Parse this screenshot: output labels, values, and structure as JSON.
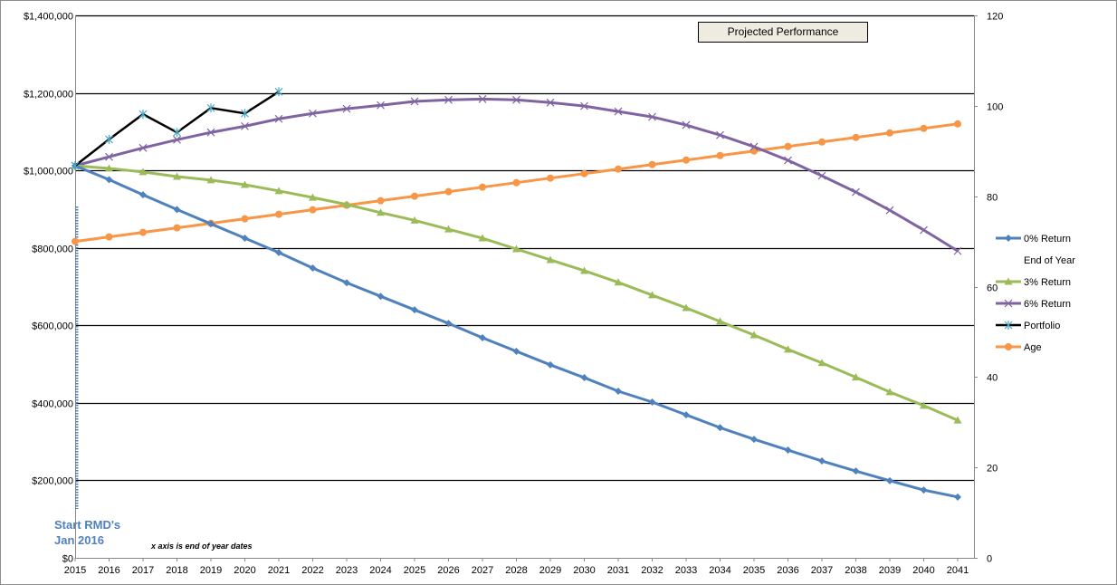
{
  "chart_data": {
    "type": "line",
    "title": "Projected Performance",
    "xlabel": "",
    "ylabel": "",
    "x_note": "x axis is end of year dates",
    "annotation": "Start RMD's\nJan 2016",
    "categories": [
      "2015",
      "2016",
      "2017",
      "2018",
      "2019",
      "2020",
      "2021",
      "2022",
      "2023",
      "2024",
      "2025",
      "2026",
      "2027",
      "2028",
      "2029",
      "2030",
      "2031",
      "2032",
      "2033",
      "2034",
      "2035",
      "2036",
      "2037",
      "2038",
      "2039",
      "2040",
      "2041"
    ],
    "left_axis": {
      "min": 0,
      "max": 1400000,
      "step": 200000,
      "ticks": [
        "$0",
        "$200,000",
        "$400,000",
        "$600,000",
        "$800,000",
        "$1,000,000",
        "$1,200,000",
        "$1,400,000"
      ]
    },
    "right_axis": {
      "min": 0,
      "max": 120,
      "step": 20,
      "ticks": [
        "0",
        "20",
        "40",
        "60",
        "80",
        "100",
        "120"
      ]
    },
    "grid": true,
    "legend_position": "right",
    "series": [
      {
        "name": "0% Return",
        "axis": "left",
        "color": "#4f81bd",
        "marker": "diamond",
        "values": [
          1012000,
          976000,
          937000,
          899000,
          862000,
          825000,
          788000,
          748000,
          710000,
          675000,
          640000,
          605000,
          568000,
          533000,
          498000,
          465000,
          430000,
          402000,
          369000,
          336000,
          306000,
          278000,
          250000,
          224000,
          199000,
          175000,
          157000
        ]
      },
      {
        "name": "End of Year",
        "axis": "left",
        "color": "none",
        "marker": "none",
        "values": []
      },
      {
        "name": "3% Return",
        "axis": "left",
        "color": "#9bbb59",
        "marker": "triangle",
        "values": [
          1012000,
          1005000,
          996000,
          984000,
          975000,
          963000,
          947000,
          930000,
          912000,
          891000,
          871000,
          848000,
          825000,
          797000,
          769000,
          741000,
          711000,
          678000,
          645000,
          610000,
          575000,
          538000,
          503000,
          466000,
          428000,
          393000,
          355000
        ]
      },
      {
        "name": "6% Return",
        "axis": "left",
        "color": "#8064a2",
        "marker": "x",
        "values": [
          1012000,
          1035000,
          1058000,
          1079000,
          1098000,
          1114000,
          1133000,
          1147000,
          1159000,
          1168000,
          1178000,
          1182000,
          1184000,
          1182000,
          1175000,
          1166000,
          1152000,
          1138000,
          1117000,
          1091000,
          1061000,
          1026000,
          986000,
          944000,
          897000,
          846000,
          792000
        ]
      },
      {
        "name": "Portfolio",
        "axis": "left",
        "color": "#000000",
        "marker": "star",
        "values": [
          1012000,
          1080000,
          1145000,
          1098000,
          1161000,
          1147000,
          1203000
        ]
      },
      {
        "name": "Age",
        "axis": "right",
        "color": "#f79646",
        "marker": "circle",
        "values": [
          70,
          71,
          72,
          73,
          74,
          75,
          76,
          77,
          78,
          79,
          80,
          81,
          82,
          83,
          84,
          85,
          86,
          87,
          88,
          89,
          90,
          91,
          92,
          93,
          94,
          95,
          96
        ]
      }
    ]
  },
  "title_box": {
    "label": "Projected Performance"
  },
  "annotations": {
    "rmd_line1": "Start RMD's",
    "rmd_line2": "Jan 2016",
    "axis_note": "x axis is end of year dates"
  }
}
